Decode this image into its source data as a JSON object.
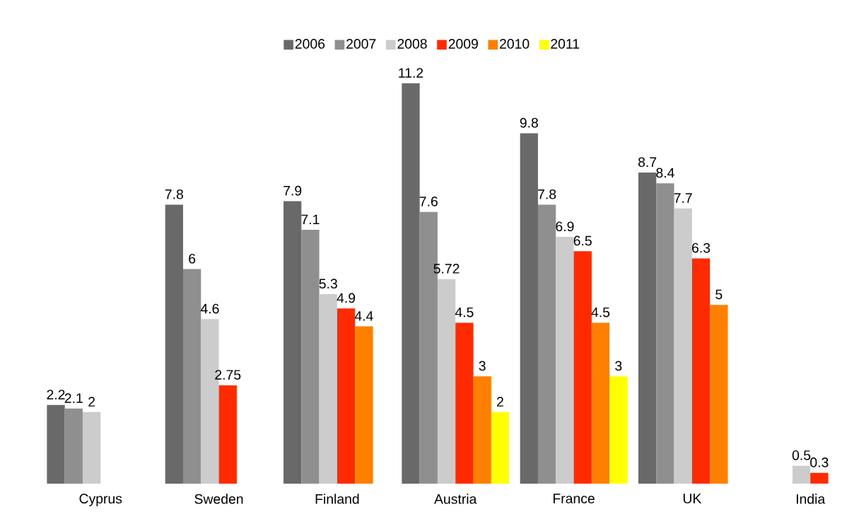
{
  "chart_data": {
    "type": "bar",
    "categories": [
      "Cyprus",
      "Sweden",
      "Finland",
      "Austria",
      "France",
      "UK",
      "India"
    ],
    "series": [
      {
        "name": "2006",
        "color": "#696969",
        "values": [
          2.2,
          7.8,
          7.9,
          11.2,
          9.8,
          8.7,
          null
        ]
      },
      {
        "name": "2007",
        "color": "#8f8f8f",
        "values": [
          2.1,
          6,
          7.1,
          7.6,
          7.8,
          8.4,
          null
        ]
      },
      {
        "name": "2008",
        "color": "#cccccc",
        "values": [
          2,
          4.6,
          5.3,
          5.72,
          6.9,
          7.7,
          0.5
        ]
      },
      {
        "name": "2009",
        "color": "#ff2a00",
        "values": [
          null,
          2.75,
          4.9,
          4.5,
          6.5,
          6.3,
          0.3
        ]
      },
      {
        "name": "2010",
        "color": "#ff7f00",
        "values": [
          null,
          null,
          4.4,
          3,
          4.5,
          5,
          null
        ]
      },
      {
        "name": "2011",
        "color": "#ffff00",
        "values": [
          null,
          null,
          null,
          2,
          3,
          null,
          null
        ]
      }
    ],
    "data_labels": true,
    "legend": "top"
  }
}
